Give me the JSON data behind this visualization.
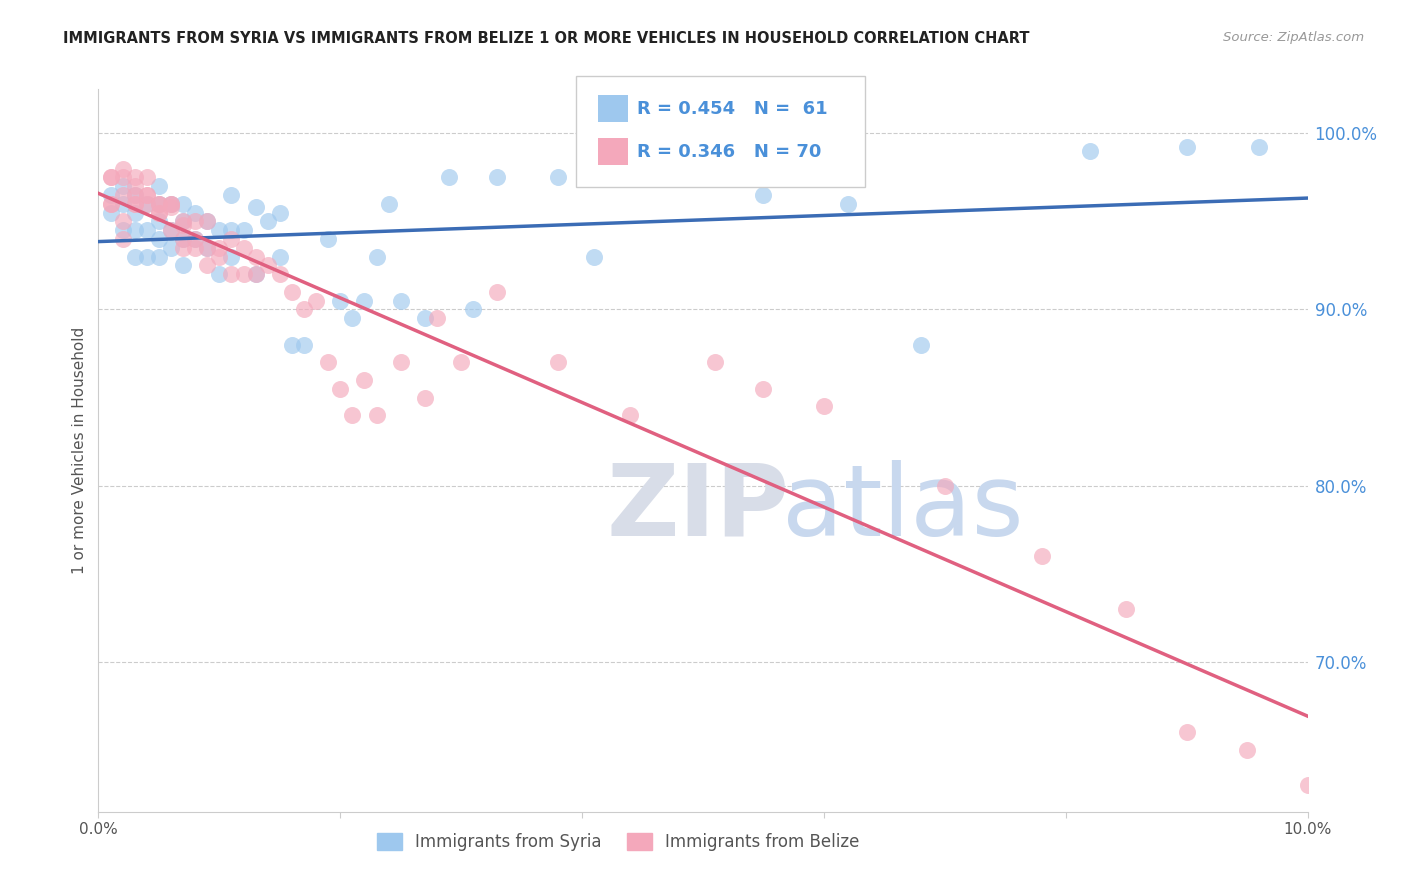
{
  "title": "IMMIGRANTS FROM SYRIA VS IMMIGRANTS FROM BELIZE 1 OR MORE VEHICLES IN HOUSEHOLD CORRELATION CHART",
  "source": "Source: ZipAtlas.com",
  "ylabel": "1 or more Vehicles in Household",
  "xlim": [
    0.0,
    0.1
  ],
  "ylim": [
    0.615,
    1.025
  ],
  "yticks": [
    0.7,
    0.8,
    0.9,
    1.0
  ],
  "ytick_labels": [
    "70.0%",
    "80.0%",
    "90.0%",
    "100.0%"
  ],
  "background_color": "#ffffff",
  "legend_r_syria": "R = 0.454",
  "legend_n_syria": "N =  61",
  "legend_r_belize": "R = 0.346",
  "legend_n_belize": "N = 70",
  "syria_color": "#9EC8EE",
  "belize_color": "#F4A8BB",
  "syria_line_color": "#3B6CB5",
  "belize_line_color": "#E06080",
  "watermark_zip": "ZIP",
  "watermark_atlas": "atlas",
  "syria_x": [
    0.001,
    0.001,
    0.002,
    0.002,
    0.002,
    0.003,
    0.003,
    0.003,
    0.003,
    0.004,
    0.004,
    0.004,
    0.005,
    0.005,
    0.005,
    0.005,
    0.005,
    0.006,
    0.006,
    0.006,
    0.007,
    0.007,
    0.007,
    0.007,
    0.008,
    0.008,
    0.009,
    0.009,
    0.01,
    0.01,
    0.011,
    0.011,
    0.011,
    0.012,
    0.013,
    0.013,
    0.014,
    0.015,
    0.015,
    0.016,
    0.017,
    0.019,
    0.02,
    0.021,
    0.022,
    0.023,
    0.024,
    0.025,
    0.027,
    0.029,
    0.031,
    0.033,
    0.038,
    0.041,
    0.05,
    0.055,
    0.062,
    0.068,
    0.082,
    0.09,
    0.096
  ],
  "syria_y": [
    0.955,
    0.965,
    0.945,
    0.96,
    0.97,
    0.93,
    0.945,
    0.955,
    0.965,
    0.93,
    0.945,
    0.96,
    0.93,
    0.94,
    0.95,
    0.96,
    0.97,
    0.935,
    0.945,
    0.96,
    0.925,
    0.94,
    0.95,
    0.96,
    0.94,
    0.955,
    0.935,
    0.95,
    0.92,
    0.945,
    0.93,
    0.945,
    0.965,
    0.945,
    0.92,
    0.958,
    0.95,
    0.93,
    0.955,
    0.88,
    0.88,
    0.94,
    0.905,
    0.895,
    0.905,
    0.93,
    0.96,
    0.905,
    0.895,
    0.975,
    0.9,
    0.975,
    0.975,
    0.93,
    0.975,
    0.965,
    0.96,
    0.88,
    0.99,
    0.992,
    0.992
  ],
  "belize_x": [
    0.001,
    0.001,
    0.001,
    0.001,
    0.002,
    0.002,
    0.002,
    0.002,
    0.002,
    0.003,
    0.003,
    0.003,
    0.003,
    0.003,
    0.004,
    0.004,
    0.004,
    0.004,
    0.005,
    0.005,
    0.005,
    0.005,
    0.006,
    0.006,
    0.006,
    0.006,
    0.007,
    0.007,
    0.007,
    0.007,
    0.008,
    0.008,
    0.008,
    0.009,
    0.009,
    0.009,
    0.01,
    0.01,
    0.011,
    0.011,
    0.012,
    0.012,
    0.013,
    0.013,
    0.014,
    0.015,
    0.016,
    0.017,
    0.018,
    0.019,
    0.02,
    0.021,
    0.022,
    0.023,
    0.025,
    0.027,
    0.028,
    0.03,
    0.033,
    0.038,
    0.044,
    0.051,
    0.055,
    0.06,
    0.07,
    0.078,
    0.085,
    0.09,
    0.095,
    0.1
  ],
  "belize_y": [
    0.96,
    0.96,
    0.975,
    0.975,
    0.94,
    0.95,
    0.965,
    0.975,
    0.98,
    0.96,
    0.965,
    0.97,
    0.975,
    0.96,
    0.96,
    0.965,
    0.965,
    0.975,
    0.96,
    0.955,
    0.96,
    0.955,
    0.958,
    0.96,
    0.96,
    0.945,
    0.95,
    0.935,
    0.948,
    0.94,
    0.935,
    0.94,
    0.95,
    0.935,
    0.925,
    0.95,
    0.93,
    0.935,
    0.92,
    0.94,
    0.92,
    0.935,
    0.93,
    0.92,
    0.925,
    0.92,
    0.91,
    0.9,
    0.905,
    0.87,
    0.855,
    0.84,
    0.86,
    0.84,
    0.87,
    0.85,
    0.895,
    0.87,
    0.91,
    0.87,
    0.84,
    0.87,
    0.855,
    0.845,
    0.8,
    0.76,
    0.73,
    0.66,
    0.65,
    0.63
  ]
}
